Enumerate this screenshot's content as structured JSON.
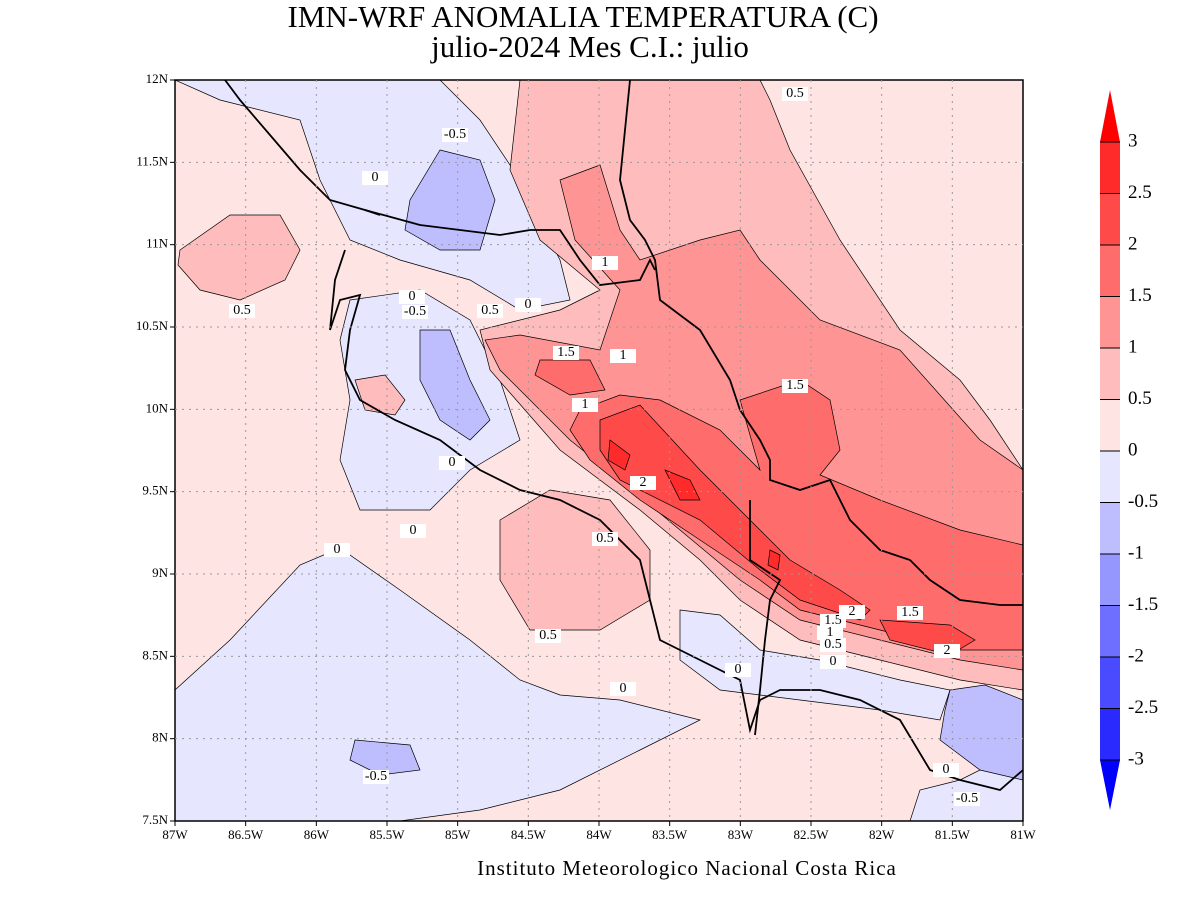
{
  "title": [
    "IMN-WRF  ANOMALIA TEMPERATURA (C)",
    "julio-2024 Mes C.I.: julio"
  ],
  "credit": "Instituto Meteorologico Nacional Costa Rica",
  "map": {
    "xlim": [
      -87,
      -81
    ],
    "ylim": [
      7.5,
      12
    ],
    "xticks": [
      {
        "value": -87,
        "label": "87W"
      },
      {
        "value": -86.5,
        "label": "86.5W"
      },
      {
        "value": -86,
        "label": "86W"
      },
      {
        "value": -85.5,
        "label": "85.5W"
      },
      {
        "value": -85,
        "label": "85W"
      },
      {
        "value": -84.5,
        "label": "84.5W"
      },
      {
        "value": -84,
        "label": "84W"
      },
      {
        "value": -83.5,
        "label": "83.5W"
      },
      {
        "value": -83,
        "label": "83W"
      },
      {
        "value": -82.5,
        "label": "82.5W"
      },
      {
        "value": -82,
        "label": "82W"
      },
      {
        "value": -81.5,
        "label": "81.5W"
      },
      {
        "value": -81,
        "label": "81W"
      }
    ],
    "yticks": [
      {
        "value": 7.5,
        "label": "7.5N"
      },
      {
        "value": 8,
        "label": "8N"
      },
      {
        "value": 8.5,
        "label": "8.5N"
      },
      {
        "value": 9,
        "label": "9N"
      },
      {
        "value": 9.5,
        "label": "9.5N"
      },
      {
        "value": 10,
        "label": "10N"
      },
      {
        "value": 10.5,
        "label": "10.5N"
      },
      {
        "value": 11,
        "label": "11N"
      },
      {
        "value": 11.5,
        "label": "11.5N"
      },
      {
        "value": 12,
        "label": "12N"
      }
    ],
    "grid": true,
    "contour_labels": [
      0.5,
      -0.5,
      0,
      1,
      0,
      -0.5,
      0.5,
      0,
      0.5,
      1.5,
      1,
      1.5,
      1,
      0,
      2,
      0,
      0.5,
      0,
      0.5,
      1.5,
      2,
      1.5,
      1,
      0.5,
      2,
      0,
      0,
      0,
      -0.5,
      0,
      -0.5
    ]
  },
  "colorbar": {
    "levels": [
      3,
      2.5,
      2,
      1.5,
      1,
      0.5,
      0,
      -0.5,
      -1,
      -1.5,
      -2,
      -2.5,
      -3
    ],
    "colors": [
      "#ff0000",
      "#ff2a2a",
      "#ff4a4a",
      "#ff6c6c",
      "#ff9494",
      "#ffbcbc",
      "#ffe4e4",
      "#e6e6ff",
      "#bebeff",
      "#9696ff",
      "#6e6eff",
      "#4a4aff",
      "#2a2aff",
      "#0000ff"
    ]
  }
}
